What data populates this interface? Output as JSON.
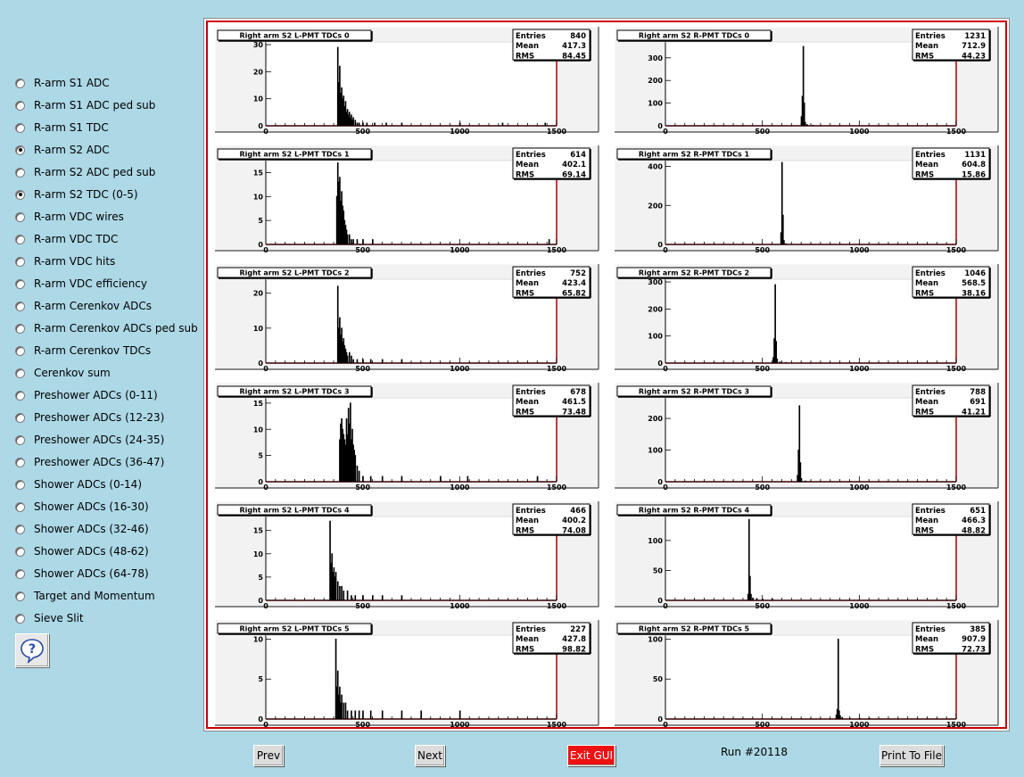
{
  "sidebar": {
    "items": [
      {
        "label": "R-arm S1 ADC",
        "checked": false
      },
      {
        "label": "R-arm S1 ADC ped sub",
        "checked": false
      },
      {
        "label": "R-arm S1 TDC",
        "checked": false
      },
      {
        "label": "R-arm S2 ADC",
        "checked": true
      },
      {
        "label": "R-arm S2 ADC ped sub",
        "checked": false
      },
      {
        "label": "R-arm S2 TDC (0-5)",
        "checked": true
      },
      {
        "label": "R-arm VDC wires",
        "checked": false
      },
      {
        "label": "R-arm VDC TDC",
        "checked": false
      },
      {
        "label": "R-arm VDC hits",
        "checked": false
      },
      {
        "label": "R-arm VDC efficiency",
        "checked": false
      },
      {
        "label": "R-arm Cerenkov ADCs",
        "checked": false
      },
      {
        "label": "R-arm Cerenkov ADCs ped sub",
        "checked": false
      },
      {
        "label": "R-arm Cerenkov TDCs",
        "checked": false
      },
      {
        "label": "Cerenkov sum",
        "checked": false
      },
      {
        "label": "Preshower ADCs (0-11)",
        "checked": false
      },
      {
        "label": "Preshower ADCs (12-23)",
        "checked": false
      },
      {
        "label": "Preshower ADCs (24-35)",
        "checked": false
      },
      {
        "label": "Preshower ADCs (36-47)",
        "checked": false
      },
      {
        "label": "Shower ADCs (0-14)",
        "checked": false
      },
      {
        "label": "Shower ADCs (16-30)",
        "checked": false
      },
      {
        "label": "Shower ADCs (32-46)",
        "checked": false
      },
      {
        "label": "Shower ADCs (48-62)",
        "checked": false
      },
      {
        "label": "Shower ADCs (64-78)",
        "checked": false
      },
      {
        "label": "Target and Momentum",
        "checked": false
      },
      {
        "label": "Sieve Slit",
        "checked": false
      }
    ],
    "help_icon": "question-bubble-icon"
  },
  "footer": {
    "prev_label": "Prev",
    "next_label": "Next",
    "exit_label": "Exit GUI",
    "run_label": "Run #20118",
    "print_label": "Print To File"
  },
  "colors": {
    "background": "#add8e6",
    "canvas_border": "#cc0000",
    "pad_fill": "#f2f2f2",
    "frame_right": "#aa0000",
    "exit_button": "#ee1111"
  },
  "chart_data": [
    {
      "type": "histogram",
      "title": "Right arm S2 L-PMT TDCs 0",
      "stats": {
        "entries": "840",
        "mean": "417.3",
        "rms": "84.45"
      },
      "xlim": [
        0,
        1500
      ],
      "xticks": [
        "0",
        "500",
        "1000",
        "1500"
      ],
      "ylim": [
        0,
        31
      ],
      "yticks": [
        "0",
        "10",
        "20",
        "30"
      ],
      "peaks": [
        [
          370,
          29
        ],
        [
          375,
          16
        ],
        [
          380,
          22
        ],
        [
          385,
          12
        ],
        [
          390,
          14
        ],
        [
          395,
          10
        ],
        [
          400,
          11
        ],
        [
          405,
          7
        ],
        [
          410,
          9
        ],
        [
          415,
          5
        ],
        [
          420,
          6
        ],
        [
          425,
          4
        ],
        [
          430,
          5
        ],
        [
          435,
          3
        ],
        [
          440,
          4
        ],
        [
          445,
          2
        ],
        [
          450,
          3
        ],
        [
          460,
          2
        ],
        [
          470,
          1
        ],
        [
          480,
          1
        ],
        [
          500,
          1
        ],
        [
          520,
          1
        ],
        [
          560,
          1
        ],
        [
          620,
          1
        ],
        [
          700,
          1
        ],
        [
          1000,
          1
        ],
        [
          1220,
          1
        ],
        [
          1440,
          1
        ]
      ]
    },
    {
      "type": "histogram",
      "title": "Right arm S2 R-PMT TDCs 0",
      "stats": {
        "entries": "1231",
        "mean": "712.9",
        "rms": "44.23"
      },
      "xlim": [
        0,
        1500
      ],
      "xticks": [
        "0",
        "500",
        "1000",
        "1500"
      ],
      "ylim": [
        0,
        370
      ],
      "yticks": [
        "0",
        "100",
        "200",
        "300"
      ],
      "peaks": [
        [
          700,
          40
        ],
        [
          705,
          130
        ],
        [
          710,
          350
        ],
        [
          715,
          100
        ],
        [
          720,
          15
        ],
        [
          730,
          5
        ],
        [
          760,
          2
        ],
        [
          800,
          1
        ]
      ]
    },
    {
      "type": "histogram",
      "title": "Right arm S2 L-PMT TDCs 1",
      "stats": {
        "entries": "614",
        "mean": "402.1",
        "rms": "69.14"
      },
      "xlim": [
        0,
        1500
      ],
      "xticks": [
        "0",
        "500",
        "1000",
        "1500"
      ],
      "ylim": [
        0,
        17.5
      ],
      "yticks": [
        "0",
        "5",
        "10",
        "15"
      ],
      "peaks": [
        [
          365,
          10
        ],
        [
          370,
          17
        ],
        [
          375,
          13
        ],
        [
          380,
          14
        ],
        [
          385,
          9
        ],
        [
          390,
          11
        ],
        [
          395,
          8
        ],
        [
          400,
          7
        ],
        [
          405,
          5
        ],
        [
          410,
          4
        ],
        [
          415,
          3
        ],
        [
          420,
          2
        ],
        [
          430,
          2
        ],
        [
          440,
          1
        ],
        [
          450,
          1
        ],
        [
          470,
          1
        ],
        [
          500,
          1
        ],
        [
          550,
          1
        ],
        [
          1460,
          1
        ]
      ]
    },
    {
      "type": "histogram",
      "title": "Right arm S2 R-PMT TDCs 1",
      "stats": {
        "entries": "1131",
        "mean": "604.8",
        "rms": "15.86"
      },
      "xlim": [
        0,
        1500
      ],
      "xticks": [
        "0",
        "500",
        "1000",
        "1500"
      ],
      "ylim": [
        0,
        430
      ],
      "yticks": [
        "0",
        "200",
        "400"
      ],
      "peaks": [
        [
          595,
          60
        ],
        [
          600,
          420
        ],
        [
          605,
          150
        ],
        [
          610,
          20
        ],
        [
          620,
          3
        ]
      ]
    },
    {
      "type": "histogram",
      "title": "Right arm S2 L-PMT TDCs 2",
      "stats": {
        "entries": "752",
        "mean": "423.4",
        "rms": "65.82"
      },
      "xlim": [
        0,
        1500
      ],
      "xticks": [
        "0",
        "500",
        "1000",
        "1500"
      ],
      "ylim": [
        0,
        24
      ],
      "yticks": [
        "0",
        "10",
        "20"
      ],
      "peaks": [
        [
          370,
          22
        ],
        [
          375,
          10
        ],
        [
          380,
          13
        ],
        [
          385,
          8
        ],
        [
          390,
          10
        ],
        [
          395,
          6
        ],
        [
          400,
          7
        ],
        [
          405,
          5
        ],
        [
          410,
          4
        ],
        [
          415,
          3
        ],
        [
          420,
          2
        ],
        [
          430,
          3
        ],
        [
          440,
          2
        ],
        [
          450,
          1
        ],
        [
          470,
          1
        ],
        [
          500,
          1
        ],
        [
          540,
          1
        ],
        [
          600,
          1
        ],
        [
          700,
          1
        ]
      ]
    },
    {
      "type": "histogram",
      "title": "Right arm S2 R-PMT TDCs 2",
      "stats": {
        "entries": "1046",
        "mean": "568.5",
        "rms": "38.16"
      },
      "xlim": [
        0,
        1500
      ],
      "xticks": [
        "0",
        "500",
        "1000",
        "1500"
      ],
      "ylim": [
        0,
        310
      ],
      "yticks": [
        "0",
        "100",
        "200",
        "300"
      ],
      "peaks": [
        [
          555,
          20
        ],
        [
          560,
          90
        ],
        [
          565,
          290
        ],
        [
          570,
          80
        ],
        [
          575,
          15
        ],
        [
          590,
          4
        ],
        [
          620,
          2
        ]
      ]
    },
    {
      "type": "histogram",
      "title": "Right arm S2 L-PMT TDCs 3",
      "stats": {
        "entries": "678",
        "mean": "461.5",
        "rms": "73.48"
      },
      "xlim": [
        0,
        1500
      ],
      "xticks": [
        "0",
        "500",
        "1000",
        "1500"
      ],
      "ylim": [
        0,
        16
      ],
      "yticks": [
        "0",
        "5",
        "10",
        "15"
      ],
      "peaks": [
        [
          380,
          8
        ],
        [
          385,
          11
        ],
        [
          390,
          12
        ],
        [
          395,
          10
        ],
        [
          400,
          9
        ],
        [
          405,
          8
        ],
        [
          410,
          7
        ],
        [
          415,
          12
        ],
        [
          420,
          9
        ],
        [
          425,
          14
        ],
        [
          430,
          11
        ],
        [
          435,
          15
        ],
        [
          440,
          8
        ],
        [
          445,
          10
        ],
        [
          450,
          7
        ],
        [
          455,
          6
        ],
        [
          460,
          5
        ],
        [
          470,
          3
        ],
        [
          480,
          2
        ],
        [
          500,
          1
        ],
        [
          540,
          1
        ],
        [
          600,
          1
        ],
        [
          700,
          1
        ],
        [
          900,
          1
        ],
        [
          1040,
          1
        ],
        [
          1400,
          1
        ]
      ]
    },
    {
      "type": "histogram",
      "title": "Right arm S2 R-PMT TDCs 3",
      "stats": {
        "entries": "788",
        "mean": "691",
        "rms": "41.21"
      },
      "xlim": [
        0,
        1500
      ],
      "xticks": [
        "0",
        "500",
        "1000",
        "1500"
      ],
      "ylim": [
        0,
        265
      ],
      "yticks": [
        "0",
        "100",
        "200"
      ],
      "peaks": [
        [
          680,
          20
        ],
        [
          685,
          100
        ],
        [
          690,
          240
        ],
        [
          695,
          60
        ],
        [
          700,
          10
        ],
        [
          720,
          2
        ]
      ]
    },
    {
      "type": "histogram",
      "title": "Right arm S2 L-PMT TDCs 4",
      "stats": {
        "entries": "466",
        "mean": "400.2",
        "rms": "74.08"
      },
      "xlim": [
        0,
        1500
      ],
      "xticks": [
        "0",
        "500",
        "1000",
        "1500"
      ],
      "ylim": [
        0,
        18
      ],
      "yticks": [
        "0",
        "5",
        "10",
        "15"
      ],
      "peaks": [
        [
          330,
          17
        ],
        [
          335,
          8
        ],
        [
          340,
          10
        ],
        [
          345,
          6
        ],
        [
          350,
          7
        ],
        [
          355,
          5
        ],
        [
          360,
          6
        ],
        [
          370,
          4
        ],
        [
          380,
          3
        ],
        [
          390,
          3
        ],
        [
          400,
          2
        ],
        [
          420,
          2
        ],
        [
          440,
          1
        ],
        [
          460,
          1
        ],
        [
          500,
          1
        ],
        [
          550,
          1
        ],
        [
          600,
          1
        ],
        [
          700,
          1
        ]
      ]
    },
    {
      "type": "histogram",
      "title": "Right arm S2 R-PMT TDCs 4",
      "stats": {
        "entries": "651",
        "mean": "466.3",
        "rms": "48.82"
      },
      "xlim": [
        0,
        1500
      ],
      "xticks": [
        "0",
        "500",
        "1000",
        "1500"
      ],
      "ylim": [
        0,
        140
      ],
      "yticks": [
        "0",
        "50",
        "100"
      ],
      "peaks": [
        [
          425,
          10
        ],
        [
          430,
          135
        ],
        [
          435,
          40
        ],
        [
          440,
          10
        ],
        [
          450,
          4
        ],
        [
          470,
          3
        ],
        [
          500,
          2
        ],
        [
          550,
          2
        ]
      ]
    },
    {
      "type": "histogram",
      "title": "Right arm S2 L-PMT TDCs 5",
      "stats": {
        "entries": "227",
        "mean": "427.8",
        "rms": "98.82"
      },
      "xlim": [
        0,
        1500
      ],
      "xticks": [
        "0",
        "500",
        "1000",
        "1500"
      ],
      "ylim": [
        0,
        10.5
      ],
      "yticks": [
        "0",
        "5",
        "10"
      ],
      "peaks": [
        [
          360,
          10
        ],
        [
          365,
          4
        ],
        [
          370,
          6
        ],
        [
          375,
          3
        ],
        [
          380,
          4
        ],
        [
          385,
          2
        ],
        [
          390,
          3
        ],
        [
          400,
          2
        ],
        [
          410,
          2
        ],
        [
          420,
          1
        ],
        [
          440,
          1
        ],
        [
          460,
          1
        ],
        [
          480,
          1
        ],
        [
          500,
          1
        ],
        [
          540,
          1
        ],
        [
          600,
          1
        ],
        [
          700,
          1
        ],
        [
          800,
          1
        ],
        [
          1000,
          1
        ]
      ]
    },
    {
      "type": "histogram",
      "title": "Right arm S2 R-PMT TDCs 5",
      "stats": {
        "entries": "385",
        "mean": "907.9",
        "rms": "72.73"
      },
      "xlim": [
        0,
        1500
      ],
      "xticks": [
        "0",
        "500",
        "1000",
        "1500"
      ],
      "ylim": [
        0,
        105
      ],
      "yticks": [
        "0",
        "50",
        "100"
      ],
      "peaks": [
        [
          880,
          5
        ],
        [
          885,
          12
        ],
        [
          890,
          100
        ],
        [
          895,
          10
        ],
        [
          900,
          4
        ],
        [
          910,
          2
        ],
        [
          950,
          1
        ],
        [
          1000,
          1
        ],
        [
          1050,
          1
        ]
      ]
    }
  ]
}
